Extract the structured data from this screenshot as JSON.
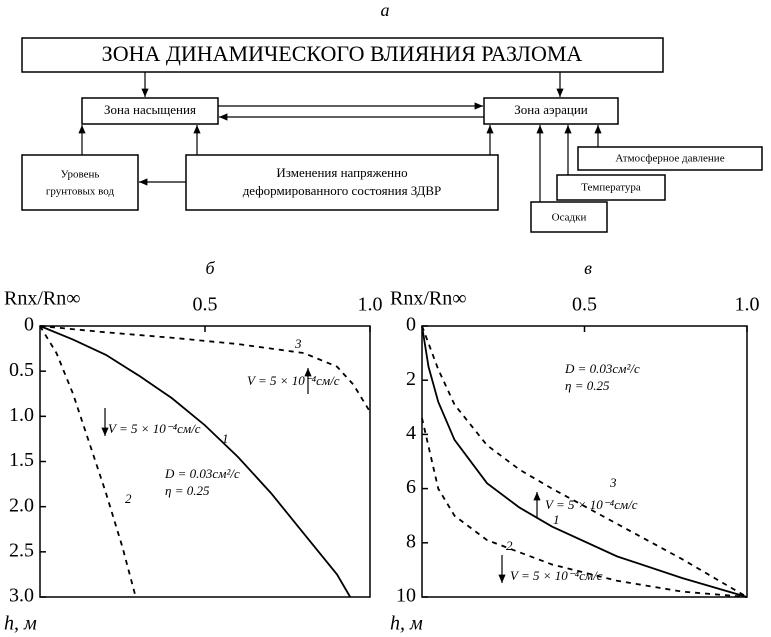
{
  "diagram": {
    "label": "а",
    "nodes": [
      {
        "lines": [
          "ЗОНА ДИНАМИЧЕСКОГО ВЛИЯНИЯ РАЗЛОМА"
        ]
      },
      {
        "lines": [
          "Зона насыщения"
        ]
      },
      {
        "lines": [
          "Зона аэрации"
        ]
      },
      {
        "lines": [
          "Уровень",
          "грунтовых вод"
        ]
      },
      {
        "lines": [
          "Изменения напряженно",
          "деформированного состояния ЗДВР"
        ]
      },
      {
        "lines": [
          "Атмосферное давление"
        ]
      },
      {
        "lines": [
          "Температура"
        ]
      },
      {
        "lines": [
          "Осадки"
        ]
      }
    ]
  },
  "chart_data": [
    {
      "type": "line",
      "title": "б",
      "x_label": "Rnx/Rn∞",
      "y_label": "h, м",
      "xlim": [
        0,
        1
      ],
      "xticks": [
        0.5,
        {
          "value": 1,
          "label": "1.0"
        }
      ],
      "ylim": [
        0,
        3
      ],
      "yticks": [
        0,
        0.5,
        {
          "value": 1,
          "label": "1.0"
        },
        1.5,
        {
          "value": 2,
          "label": "2.0"
        },
        2.5,
        {
          "value": 3,
          "label": "3.0"
        }
      ],
      "y_inverted": true,
      "series": [
        {
          "name": "1",
          "color": "#000",
          "dashed": false,
          "x": [
            0,
            0.1,
            0.2,
            0.3,
            0.4,
            0.5,
            0.6,
            0.7,
            0.8,
            0.9,
            0.94
          ],
          "values": [
            0,
            0.15,
            0.32,
            0.55,
            0.8,
            1.1,
            1.45,
            1.85,
            2.3,
            2.75,
            3.0
          ]
        },
        {
          "name": "2",
          "color": "#000",
          "dashed": true,
          "x": [
            0,
            0.05,
            0.1,
            0.15,
            0.2,
            0.25,
            0.29
          ],
          "values": [
            0,
            0.3,
            0.75,
            1.3,
            1.85,
            2.45,
            3.0
          ]
        },
        {
          "name": "3",
          "color": "#000",
          "dashed": true,
          "x": [
            0,
            0.2,
            0.4,
            0.6,
            0.8,
            0.9,
            0.95,
            1.0
          ],
          "values": [
            0,
            0.07,
            0.13,
            0.2,
            0.3,
            0.45,
            0.65,
            0.95
          ]
        }
      ],
      "annotations": [
        "V = 5 × 10⁻⁴см/с",
        "V = 5 × 10⁻⁴см/с",
        "D = 0.03см²/с",
        "η = 0.25"
      ]
    },
    {
      "type": "line",
      "title": "в",
      "x_label": "Rnx/Rn∞",
      "y_label": "h, м",
      "xlim": [
        0,
        1
      ],
      "xticks": [
        0.5,
        {
          "value": 1,
          "label": "1.0"
        }
      ],
      "ylim": [
        0,
        10
      ],
      "yticks": [
        0,
        2,
        4,
        6,
        8,
        10
      ],
      "y_inverted": true,
      "series": [
        {
          "name": "1",
          "color": "#000",
          "dashed": false,
          "x": [
            0,
            0.02,
            0.05,
            0.1,
            0.2,
            0.3,
            0.4,
            0.6,
            0.8,
            1.0
          ],
          "values": [
            0,
            1.5,
            2.8,
            4.2,
            5.8,
            6.7,
            7.4,
            8.5,
            9.3,
            10
          ]
        },
        {
          "name": "2",
          "color": "#000",
          "dashed": true,
          "x": [
            0,
            0.05,
            0.1,
            0.2,
            0.4,
            0.6,
            0.8,
            1.0
          ],
          "values": [
            3.4,
            6.0,
            7.0,
            7.9,
            8.8,
            9.4,
            9.8,
            10
          ]
        },
        {
          "name": "3",
          "color": "#000",
          "dashed": true,
          "x": [
            0,
            0.05,
            0.1,
            0.2,
            0.3,
            0.4,
            0.6,
            0.8,
            1.0
          ],
          "values": [
            0,
            1.6,
            2.9,
            4.4,
            5.3,
            6.0,
            7.3,
            8.6,
            10
          ]
        }
      ],
      "annotations": [
        "D = 0.03см²/с",
        "η = 0.25",
        "V = 5 × 10⁻⁴см/с",
        "V = 5 × 10⁻⁴см/с"
      ]
    }
  ]
}
